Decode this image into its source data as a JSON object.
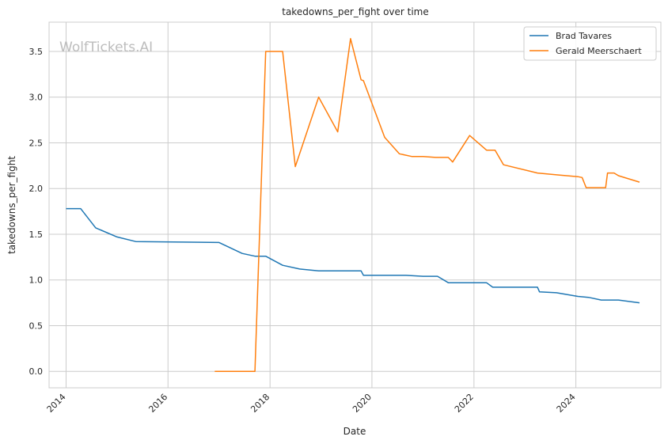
{
  "chart_data": {
    "type": "line",
    "title": "takedowns_per_fight over time",
    "xlabel": "Date",
    "ylabel": "takedowns_per_fight",
    "watermark": "WolfTickets.AI",
    "xlim": [
      "2013-09-01",
      "2025-09-01"
    ],
    "ylim": [
      -0.18,
      3.82
    ],
    "x_ticks": [
      "2014",
      "2016",
      "2018",
      "2020",
      "2022",
      "2024"
    ],
    "y_ticks": [
      "0.0",
      "0.5",
      "1.0",
      "1.5",
      "2.0",
      "2.5",
      "3.0",
      "3.5"
    ],
    "grid": true,
    "legend_position": "top-right",
    "series": [
      {
        "name": "Brad Tavares",
        "color": "#1f77b4",
        "x": [
          "2014-01-01",
          "2014-04-15",
          "2014-08-01",
          "2015-01-01",
          "2015-05-15",
          "2017-01-01",
          "2017-06-15",
          "2017-09-15",
          "2017-12-01",
          "2018-04-01",
          "2018-08-01",
          "2018-12-15",
          "2019-10-15",
          "2019-11-01",
          "2020-09-01",
          "2021-01-01",
          "2021-04-15",
          "2021-07-01",
          "2022-04-01",
          "2022-05-15",
          "2023-04-01",
          "2023-04-15",
          "2023-08-15",
          "2024-01-15",
          "2024-04-01",
          "2024-07-01",
          "2024-11-01",
          "2025-04-01"
        ],
        "y": [
          1.78,
          1.78,
          1.57,
          1.47,
          1.42,
          1.41,
          1.29,
          1.26,
          1.26,
          1.16,
          1.12,
          1.1,
          1.1,
          1.05,
          1.05,
          1.04,
          1.04,
          0.97,
          0.97,
          0.92,
          0.92,
          0.87,
          0.86,
          0.82,
          0.81,
          0.78,
          0.78,
          0.75
        ]
      },
      {
        "name": "Gerald Meerschaert",
        "color": "#ff7f0e",
        "x": [
          "2016-12-01",
          "2017-09-15",
          "2017-12-01",
          "2018-04-01",
          "2018-07-01",
          "2018-12-15",
          "2019-05-01",
          "2019-08-01",
          "2019-10-15",
          "2019-11-01",
          "2020-04-01",
          "2020-07-15",
          "2020-10-15",
          "2021-01-01",
          "2021-04-01",
          "2021-07-01",
          "2021-08-01",
          "2021-12-01",
          "2022-04-01",
          "2022-06-01",
          "2022-08-01",
          "2023-04-01",
          "2023-08-15",
          "2024-01-15",
          "2024-02-15",
          "2024-03-15",
          "2024-08-01",
          "2024-08-15",
          "2024-10-01",
          "2024-11-01",
          "2025-04-01"
        ],
        "y": [
          0.0,
          0.0,
          3.5,
          3.5,
          2.24,
          3.0,
          2.62,
          3.64,
          3.19,
          3.18,
          2.56,
          2.38,
          2.35,
          2.35,
          2.34,
          2.34,
          2.29,
          2.58,
          2.42,
          2.42,
          2.26,
          2.17,
          2.15,
          2.13,
          2.12,
          2.01,
          2.01,
          2.17,
          2.17,
          2.14,
          2.07
        ]
      }
    ]
  }
}
